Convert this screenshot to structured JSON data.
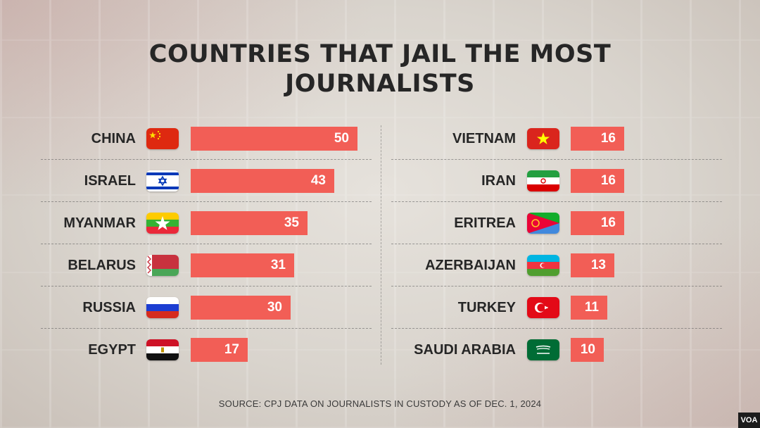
{
  "title": "COUNTRIES THAT JAIL THE MOST JOURNALISTS",
  "source": "SOURCE: CPJ DATA ON JOURNALISTS IN CUSTODY AS OF DEC. 1, 2024",
  "watermark": "VOA",
  "colors": {
    "bar": "#f25e56",
    "text": "#262626"
  },
  "chart_data": {
    "type": "bar",
    "orientation": "horizontal",
    "title": "COUNTRIES THAT JAIL THE MOST JOURNALISTS",
    "categories": [
      "CHINA",
      "ISRAEL",
      "MYANMAR",
      "BELARUS",
      "RUSSIA",
      "EGYPT",
      "VIETNAM",
      "IRAN",
      "ERITREA",
      "AZERBAIJAN",
      "TURKEY",
      "SAUDI ARABIA"
    ],
    "values": [
      50,
      43,
      35,
      31,
      30,
      17,
      16,
      16,
      16,
      13,
      11,
      10
    ],
    "xlim": [
      0,
      50
    ],
    "grid": false,
    "legend": "none",
    "columns": [
      [
        {
          "label": "CHINA",
          "value": 50,
          "flag": "china-flag-icon"
        },
        {
          "label": "ISRAEL",
          "value": 43,
          "flag": "israel-flag-icon"
        },
        {
          "label": "MYANMAR",
          "value": 35,
          "flag": "myanmar-flag-icon"
        },
        {
          "label": "BELARUS",
          "value": 31,
          "flag": "belarus-flag-icon"
        },
        {
          "label": "RUSSIA",
          "value": 30,
          "flag": "russia-flag-icon"
        },
        {
          "label": "EGYPT",
          "value": 17,
          "flag": "egypt-flag-icon"
        }
      ],
      [
        {
          "label": "VIETNAM",
          "value": 16,
          "flag": "vietnam-flag-icon"
        },
        {
          "label": "IRAN",
          "value": 16,
          "flag": "iran-flag-icon"
        },
        {
          "label": "ERITREA",
          "value": 16,
          "flag": "eritrea-flag-icon"
        },
        {
          "label": "AZERBAIJAN",
          "value": 13,
          "flag": "azerbaijan-flag-icon"
        },
        {
          "label": "TURKEY",
          "value": 11,
          "flag": "turkey-flag-icon"
        },
        {
          "label": "SAUDI ARABIA",
          "value": 10,
          "flag": "saudi-arabia-flag-icon"
        }
      ]
    ]
  }
}
